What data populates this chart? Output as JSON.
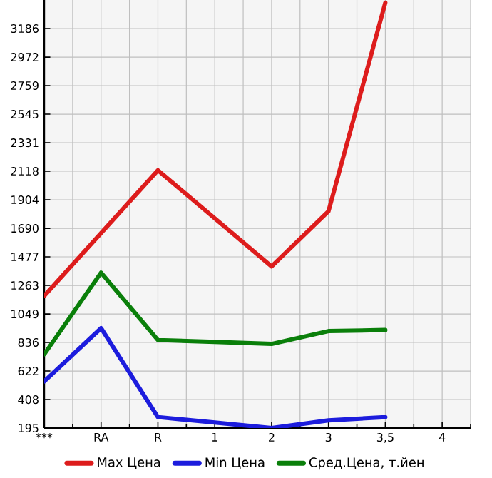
{
  "chart_data": {
    "type": "line",
    "categories": [
      "***",
      "RA",
      "R",
      "1",
      "2",
      "3",
      "3,5",
      "4"
    ],
    "series": [
      {
        "name": "Max Цена",
        "color": "#dd1c1c",
        "values": [
          1185,
          1655,
          2125,
          1765,
          1405,
          1818,
          3380,
          null
        ]
      },
      {
        "name": "Min Цена",
        "color": "#1c1cdd",
        "values": [
          544,
          943,
          277,
          236,
          195,
          252,
          277,
          null
        ]
      },
      {
        "name": "Сред.Цена, т.йен",
        "color": "#0a7f0a",
        "values": [
          747,
          1359,
          854,
          840,
          825,
          921,
          929,
          null
        ]
      }
    ],
    "ylim": [
      195,
      3400
    ],
    "yticks": [
      195,
      408,
      622,
      836,
      1049,
      1263,
      1477,
      1690,
      1904,
      2118,
      2331,
      2545,
      2759,
      2972,
      3186
    ],
    "grid": true,
    "legend": "bottom",
    "marker": "none",
    "line_style": "solid"
  }
}
